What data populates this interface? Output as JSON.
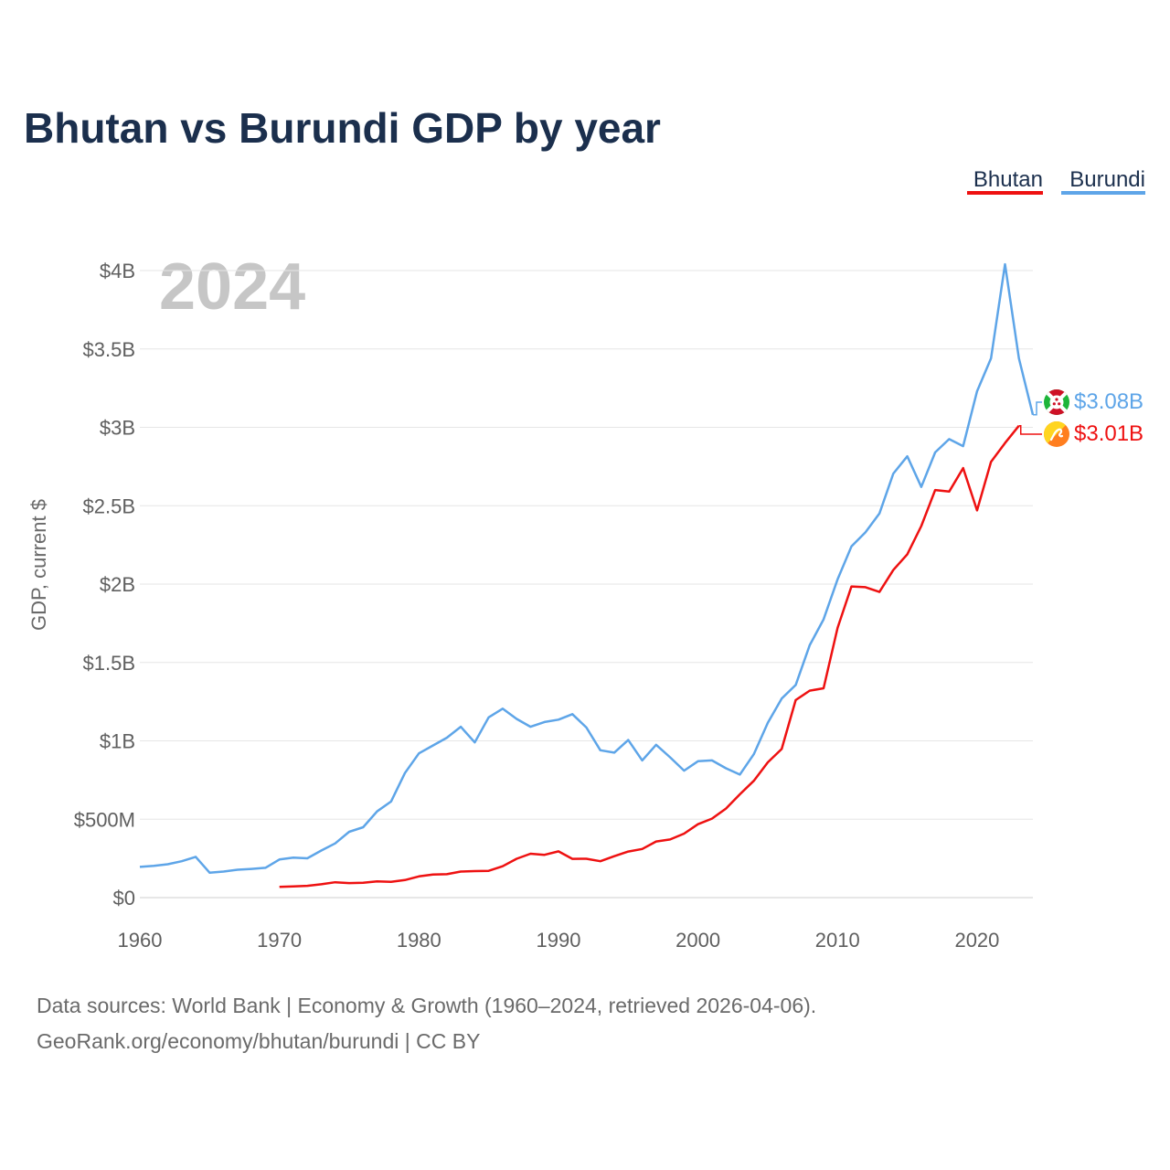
{
  "chart_data": {
    "type": "line",
    "title": "Bhutan vs Burundi GDP by year",
    "ylabel": "GDP, current $",
    "xlabel": "",
    "year_watermark": "2024",
    "xlim": [
      1960,
      2024
    ],
    "ylim": [
      0,
      4000000000
    ],
    "x_ticks": [
      {
        "value": 1960,
        "label": "1960"
      },
      {
        "value": 1970,
        "label": "1970"
      },
      {
        "value": 1980,
        "label": "1980"
      },
      {
        "value": 1990,
        "label": "1990"
      },
      {
        "value": 2000,
        "label": "2000"
      },
      {
        "value": 2010,
        "label": "2010"
      },
      {
        "value": 2020,
        "label": "2020"
      }
    ],
    "y_ticks": [
      {
        "value": 0,
        "label": "$0"
      },
      {
        "value": 500000000,
        "label": "$500M"
      },
      {
        "value": 1000000000,
        "label": "$1B"
      },
      {
        "value": 1500000000,
        "label": "$1.5B"
      },
      {
        "value": 2000000000,
        "label": "$2B"
      },
      {
        "value": 2500000000,
        "label": "$2.5B"
      },
      {
        "value": 3000000000,
        "label": "$3B"
      },
      {
        "value": 3500000000,
        "label": "$3.5B"
      },
      {
        "value": 4000000000,
        "label": "$4B"
      }
    ],
    "grid": true,
    "legend_position": "top-right",
    "series": [
      {
        "name": "Bhutan",
        "color": "#ee1111",
        "flag_icon": "bhutan-flag-icon",
        "end_label": "$3.01B",
        "points": [
          [
            1970,
            68
          ],
          [
            1971,
            72
          ],
          [
            1972,
            75
          ],
          [
            1973,
            85
          ],
          [
            1974,
            98
          ],
          [
            1975,
            93
          ],
          [
            1976,
            95
          ],
          [
            1977,
            104
          ],
          [
            1978,
            101
          ],
          [
            1979,
            112
          ],
          [
            1980,
            135
          ],
          [
            1981,
            147
          ],
          [
            1982,
            149
          ],
          [
            1983,
            166
          ],
          [
            1984,
            169
          ],
          [
            1985,
            171
          ],
          [
            1986,
            200
          ],
          [
            1987,
            248
          ],
          [
            1988,
            280
          ],
          [
            1989,
            273
          ],
          [
            1990,
            295
          ],
          [
            1991,
            247
          ],
          [
            1992,
            248
          ],
          [
            1993,
            232
          ],
          [
            1994,
            264
          ],
          [
            1995,
            294
          ],
          [
            1996,
            310
          ],
          [
            1997,
            358
          ],
          [
            1998,
            371
          ],
          [
            1999,
            408
          ],
          [
            2000,
            468
          ],
          [
            2001,
            504
          ],
          [
            2002,
            568
          ],
          [
            2003,
            659
          ],
          [
            2004,
            745
          ],
          [
            2005,
            863
          ],
          [
            2006,
            948
          ],
          [
            2007,
            1260
          ],
          [
            2008,
            1320
          ],
          [
            2009,
            1335
          ],
          [
            2010,
            1720
          ],
          [
            2011,
            1985
          ],
          [
            2012,
            1980
          ],
          [
            2013,
            1950
          ],
          [
            2014,
            2090
          ],
          [
            2015,
            2190
          ],
          [
            2016,
            2370
          ],
          [
            2017,
            2600
          ],
          [
            2018,
            2590
          ],
          [
            2019,
            2740
          ],
          [
            2020,
            2470
          ],
          [
            2021,
            2780
          ],
          [
            2022,
            2900
          ],
          [
            2023,
            3010
          ]
        ]
      },
      {
        "name": "Burundi",
        "color": "#5ea5e8",
        "flag_icon": "burundi-flag-icon",
        "end_label": "$3.08B",
        "points": [
          [
            1960,
            196
          ],
          [
            1961,
            203
          ],
          [
            1962,
            213
          ],
          [
            1963,
            232
          ],
          [
            1964,
            260
          ],
          [
            1965,
            159
          ],
          [
            1966,
            166
          ],
          [
            1967,
            178
          ],
          [
            1968,
            183
          ],
          [
            1969,
            190
          ],
          [
            1970,
            243
          ],
          [
            1971,
            255
          ],
          [
            1972,
            251
          ],
          [
            1973,
            300
          ],
          [
            1974,
            346
          ],
          [
            1975,
            420
          ],
          [
            1976,
            449
          ],
          [
            1977,
            550
          ],
          [
            1978,
            613
          ],
          [
            1979,
            795
          ],
          [
            1980,
            920
          ],
          [
            1981,
            970
          ],
          [
            1982,
            1020
          ],
          [
            1983,
            1090
          ],
          [
            1984,
            990
          ],
          [
            1985,
            1150
          ],
          [
            1986,
            1205
          ],
          [
            1987,
            1140
          ],
          [
            1988,
            1090
          ],
          [
            1989,
            1120
          ],
          [
            1990,
            1135
          ],
          [
            1991,
            1170
          ],
          [
            1992,
            1085
          ],
          [
            1993,
            940
          ],
          [
            1994,
            925
          ],
          [
            1995,
            1005
          ],
          [
            1996,
            875
          ],
          [
            1997,
            975
          ],
          [
            1998,
            895
          ],
          [
            1999,
            810
          ],
          [
            2000,
            870
          ],
          [
            2001,
            875
          ],
          [
            2002,
            825
          ],
          [
            2003,
            785
          ],
          [
            2004,
            915
          ],
          [
            2005,
            1115
          ],
          [
            2006,
            1270
          ],
          [
            2007,
            1356
          ],
          [
            2008,
            1610
          ],
          [
            2009,
            1775
          ],
          [
            2010,
            2030
          ],
          [
            2011,
            2240
          ],
          [
            2012,
            2330
          ],
          [
            2013,
            2450
          ],
          [
            2014,
            2705
          ],
          [
            2015,
            2815
          ],
          [
            2016,
            2620
          ],
          [
            2017,
            2840
          ],
          [
            2018,
            2925
          ],
          [
            2019,
            2880
          ],
          [
            2020,
            3230
          ],
          [
            2021,
            3440
          ],
          [
            2022,
            4040
          ],
          [
            2023,
            3440
          ],
          [
            2024,
            3080
          ]
        ],
        "value_unit": "million USD"
      }
    ],
    "value_unit": "million USD"
  },
  "source": {
    "line1": "Data sources: World Bank | Economy & Growth (1960–2024, retrieved 2026-04-06).",
    "line2": "GeoRank.org/economy/bhutan/burundi | CC BY"
  }
}
